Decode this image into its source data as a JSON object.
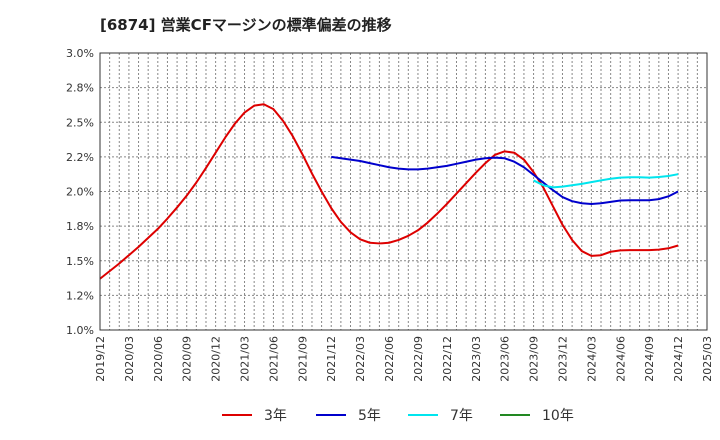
{
  "chart_data": {
    "type": "line",
    "title": "[6874]  営業CFマージンの標準偏差の推移",
    "xlabel": "",
    "ylabel": "",
    "ylim": [
      0.01,
      0.03
    ],
    "y_ticks": [
      "1.0%",
      "1.2%",
      "1.5%",
      "1.8%",
      "2.0%",
      "2.2%",
      "2.5%",
      "2.8%",
      "3.0%"
    ],
    "x_ticks": [
      "2019/12",
      "2020/03",
      "2020/06",
      "2020/09",
      "2020/12",
      "2021/03",
      "2021/06",
      "2021/09",
      "2021/12",
      "2022/03",
      "2022/06",
      "2022/09",
      "2022/12",
      "2023/03",
      "2023/06",
      "2023/09",
      "2023/12",
      "2024/03",
      "2024/06",
      "2024/09",
      "2024/12",
      "2025/03"
    ],
    "grid": true,
    "legend_position": "bottom",
    "series": [
      {
        "name": "3年",
        "color": "#dd0000",
        "points": [
          [
            "2019/12",
            0.0137
          ],
          [
            "2020/01",
            0.01425
          ],
          [
            "2020/02",
            0.0148
          ],
          [
            "2020/03",
            0.0154
          ],
          [
            "2020/04",
            0.016
          ],
          [
            "2020/05",
            0.01665
          ],
          [
            "2020/06",
            0.0173
          ],
          [
            "2020/07",
            0.01805
          ],
          [
            "2020/08",
            0.01885
          ],
          [
            "2020/09",
            0.0197
          ],
          [
            "2020/10",
            0.02065
          ],
          [
            "2020/11",
            0.0217
          ],
          [
            "2020/12",
            0.0228
          ],
          [
            "2021/01",
            0.0239
          ],
          [
            "2021/02",
            0.0249
          ],
          [
            "2021/03",
            0.0257
          ],
          [
            "2021/04",
            0.0262
          ],
          [
            "2021/05",
            0.0263
          ],
          [
            "2021/06",
            0.02595
          ],
          [
            "2021/07",
            0.0251
          ],
          [
            "2021/08",
            0.024
          ],
          [
            "2021/09",
            0.0227
          ],
          [
            "2021/10",
            0.0213
          ],
          [
            "2021/11",
            0.02
          ],
          [
            "2021/12",
            0.0188
          ],
          [
            "2022/01",
            0.0178
          ],
          [
            "2022/02",
            0.01705
          ],
          [
            "2022/03",
            0.01655
          ],
          [
            "2022/04",
            0.0163
          ],
          [
            "2022/05",
            0.01625
          ],
          [
            "2022/06",
            0.0163
          ],
          [
            "2022/07",
            0.0165
          ],
          [
            "2022/08",
            0.0168
          ],
          [
            "2022/09",
            0.0172
          ],
          [
            "2022/10",
            0.01775
          ],
          [
            "2022/11",
            0.0184
          ],
          [
            "2022/12",
            0.0191
          ],
          [
            "2023/01",
            0.01985
          ],
          [
            "2023/02",
            0.0206
          ],
          [
            "2023/03",
            0.02135
          ],
          [
            "2023/04",
            0.02205
          ],
          [
            "2023/05",
            0.02265
          ],
          [
            "2023/06",
            0.0229
          ],
          [
            "2023/07",
            0.0228
          ],
          [
            "2023/08",
            0.0223
          ],
          [
            "2023/09",
            0.0214
          ],
          [
            "2023/10",
            0.0203
          ],
          [
            "2023/11",
            0.01895
          ],
          [
            "2023/12",
            0.0176
          ],
          [
            "2024/01",
            0.0165
          ],
          [
            "2024/02",
            0.0157
          ],
          [
            "2024/03",
            0.01535
          ],
          [
            "2024/04",
            0.0154
          ],
          [
            "2024/05",
            0.01565
          ],
          [
            "2024/06",
            0.01575
          ],
          [
            "2024/07",
            0.01577
          ],
          [
            "2024/08",
            0.01577
          ],
          [
            "2024/09",
            0.01577
          ],
          [
            "2024/10",
            0.0158
          ],
          [
            "2024/11",
            0.0159
          ],
          [
            "2024/12",
            0.0161
          ]
        ]
      },
      {
        "name": "5年",
        "color": "#0000cc",
        "points": [
          [
            "2021/12",
            0.0225
          ],
          [
            "2022/01",
            0.0224
          ],
          [
            "2022/02",
            0.0223
          ],
          [
            "2022/03",
            0.0222
          ],
          [
            "2022/04",
            0.02205
          ],
          [
            "2022/05",
            0.0219
          ],
          [
            "2022/06",
            0.02175
          ],
          [
            "2022/07",
            0.02165
          ],
          [
            "2022/08",
            0.0216
          ],
          [
            "2022/09",
            0.0216
          ],
          [
            "2022/10",
            0.02165
          ],
          [
            "2022/11",
            0.02175
          ],
          [
            "2022/12",
            0.02185
          ],
          [
            "2023/01",
            0.022
          ],
          [
            "2023/02",
            0.02215
          ],
          [
            "2023/03",
            0.0223
          ],
          [
            "2023/04",
            0.0224
          ],
          [
            "2023/05",
            0.02245
          ],
          [
            "2023/06",
            0.0224
          ],
          [
            "2023/07",
            0.02215
          ],
          [
            "2023/08",
            0.02175
          ],
          [
            "2023/09",
            0.0212
          ],
          [
            "2023/10",
            0.02065
          ],
          [
            "2023/11",
            0.0201
          ],
          [
            "2023/12",
            0.0196
          ],
          [
            "2024/01",
            0.0193
          ],
          [
            "2024/02",
            0.01915
          ],
          [
            "2024/03",
            0.0191
          ],
          [
            "2024/04",
            0.01915
          ],
          [
            "2024/05",
            0.01925
          ],
          [
            "2024/06",
            0.01935
          ],
          [
            "2024/07",
            0.01937
          ],
          [
            "2024/08",
            0.01937
          ],
          [
            "2024/09",
            0.01937
          ],
          [
            "2024/10",
            0.01945
          ],
          [
            "2024/11",
            0.01965
          ],
          [
            "2024/12",
            0.02
          ]
        ]
      },
      {
        "name": "7年",
        "color": "#00e5ee",
        "points": [
          [
            "2023/09",
            0.0208
          ],
          [
            "2023/10",
            0.02045
          ],
          [
            "2023/11",
            0.0203
          ],
          [
            "2023/12",
            0.02035
          ],
          [
            "2024/01",
            0.02045
          ],
          [
            "2024/02",
            0.02055
          ],
          [
            "2024/03",
            0.02068
          ],
          [
            "2024/04",
            0.0208
          ],
          [
            "2024/05",
            0.02092
          ],
          [
            "2024/06",
            0.021
          ],
          [
            "2024/07",
            0.02103
          ],
          [
            "2024/08",
            0.02103
          ],
          [
            "2024/09",
            0.021
          ],
          [
            "2024/10",
            0.02105
          ],
          [
            "2024/11",
            0.02112
          ],
          [
            "2024/12",
            0.02125
          ]
        ]
      },
      {
        "name": "10年",
        "color": "#228822",
        "points": []
      }
    ]
  }
}
